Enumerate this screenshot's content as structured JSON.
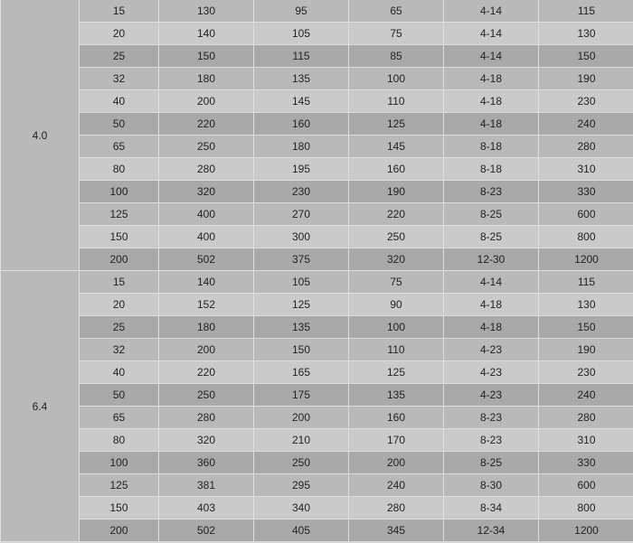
{
  "groups": [
    {
      "pressure": "4.0",
      "rows": [
        [
          "15",
          "130",
          "95",
          "65",
          "4-14",
          "115"
        ],
        [
          "20",
          "140",
          "105",
          "75",
          "4-14",
          "130"
        ],
        [
          "25",
          "150",
          "115",
          "85",
          "4-14",
          "150"
        ],
        [
          "32",
          "180",
          "135",
          "100",
          "4-18",
          "190"
        ],
        [
          "40",
          "200",
          "145",
          "110",
          "4-18",
          "230"
        ],
        [
          "50",
          "220",
          "160",
          "125",
          "4-18",
          "240"
        ],
        [
          "65",
          "250",
          "180",
          "145",
          "8-18",
          "280"
        ],
        [
          "80",
          "280",
          "195",
          "160",
          "8-18",
          "310"
        ],
        [
          "100",
          "320",
          "230",
          "190",
          "8-23",
          "330"
        ],
        [
          "125",
          "400",
          "270",
          "220",
          "8-25",
          "600"
        ],
        [
          "150",
          "400",
          "300",
          "250",
          "8-25",
          "800"
        ],
        [
          "200",
          "502",
          "375",
          "320",
          "12-30",
          "1200"
        ]
      ]
    },
    {
      "pressure": "6.4",
      "rows": [
        [
          "15",
          "140",
          "105",
          "75",
          "4-14",
          "115"
        ],
        [
          "20",
          "152",
          "125",
          "90",
          "4-18",
          "130"
        ],
        [
          "25",
          "180",
          "135",
          "100",
          "4-18",
          "150"
        ],
        [
          "32",
          "200",
          "150",
          "110",
          "4-23",
          "190"
        ],
        [
          "40",
          "220",
          "165",
          "125",
          "4-23",
          "230"
        ],
        [
          "50",
          "250",
          "175",
          "135",
          "4-23",
          "240"
        ],
        [
          "65",
          "280",
          "200",
          "160",
          "8-23",
          "280"
        ],
        [
          "80",
          "320",
          "210",
          "170",
          "8-23",
          "310"
        ],
        [
          "100",
          "360",
          "250",
          "200",
          "8-25",
          "330"
        ],
        [
          "125",
          "381",
          "295",
          "240",
          "8-30",
          "600"
        ],
        [
          "150",
          "403",
          "340",
          "280",
          "8-34",
          "800"
        ],
        [
          "200",
          "502",
          "405",
          "345",
          "12-34",
          "1200"
        ]
      ]
    }
  ],
  "colors": {
    "row_medium": "#b9b9b9",
    "row_light": "#cacaca",
    "row_dark": "#a9a9a9",
    "border": "#dedede"
  }
}
